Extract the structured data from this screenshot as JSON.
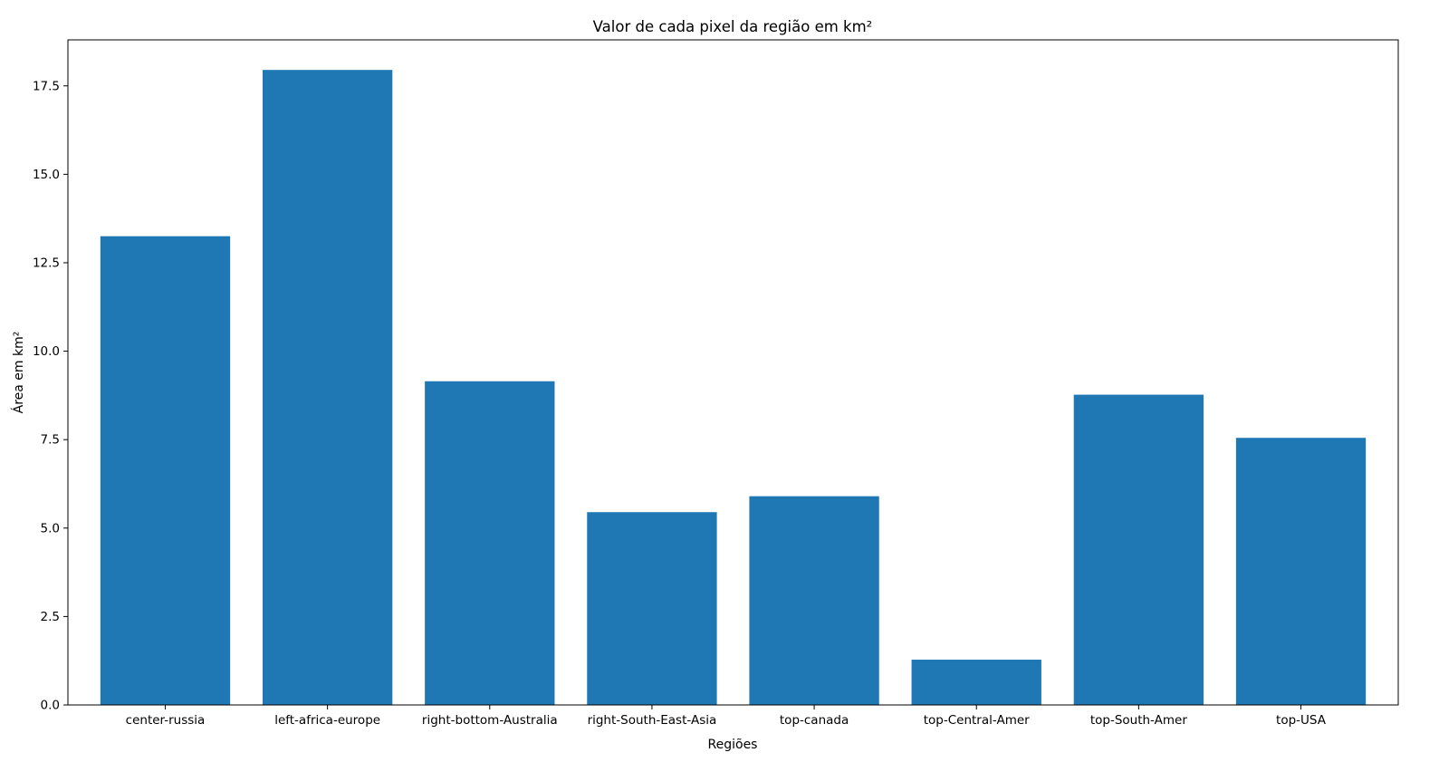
{
  "chart_data": {
    "type": "bar",
    "title": "Valor de cada pixel da região em km²",
    "xlabel": "Regiões",
    "ylabel": "Área em km²",
    "categories": [
      "center-russia",
      "left-africa-europe",
      "right-bottom-Australia",
      "right-South-East-Asia",
      "top-canada",
      "top-Central-Amer",
      "top-South-Amer",
      "top-USA"
    ],
    "values": [
      13.25,
      17.95,
      9.15,
      5.45,
      5.9,
      1.28,
      8.77,
      7.55
    ],
    "ylim": [
      0,
      18.8
    ],
    "yticks": [
      0.0,
      2.5,
      5.0,
      7.5,
      10.0,
      12.5,
      15.0,
      17.5
    ],
    "ytick_labels": [
      "0.0",
      "2.5",
      "5.0",
      "7.5",
      "10.0",
      "12.5",
      "15.0",
      "17.5"
    ],
    "bar_color": "#1f77b4",
    "grid": false,
    "legend": "none"
  }
}
